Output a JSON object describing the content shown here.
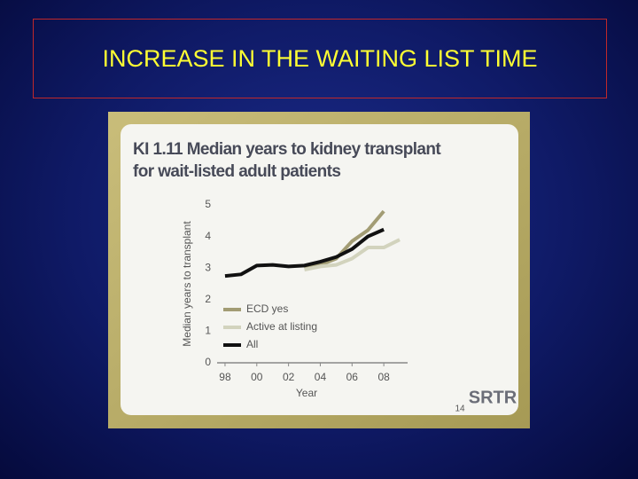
{
  "title": "INCREASE IN THE WAITING LIST TIME",
  "page_number": "14",
  "logo": "SRTR",
  "chart_data": {
    "type": "line",
    "title": "KI 1.11 Median years to kidney transplant for wait-listed adult patients",
    "x_label": "Year",
    "y_label": "Median years to transplant",
    "x": [
      1998,
      1999,
      2000,
      2001,
      2002,
      2003,
      2004,
      2005,
      2006,
      2007,
      2008,
      2009
    ],
    "series": [
      {
        "name": "ECD yes",
        "color": "#a29c74",
        "values": [
          null,
          null,
          null,
          null,
          null,
          3.0,
          3.1,
          3.3,
          3.85,
          4.2,
          4.8,
          null
        ]
      },
      {
        "name": "Active at listing",
        "color": "#d2d3bd",
        "values": [
          null,
          null,
          null,
          null,
          null,
          2.95,
          3.05,
          3.1,
          3.3,
          3.65,
          3.65,
          3.9
        ]
      },
      {
        "name": "All",
        "color": "#111111",
        "values": [
          2.75,
          2.8,
          3.08,
          3.1,
          3.05,
          3.08,
          3.2,
          3.35,
          3.6,
          4.0,
          4.22,
          null
        ]
      }
    ],
    "xlim": [
      1997.5,
      2009.5
    ],
    "xticks": [
      {
        "value": 1998,
        "label": "98"
      },
      {
        "value": 2000,
        "label": "00"
      },
      {
        "value": 2002,
        "label": "02"
      },
      {
        "value": 2004,
        "label": "04"
      },
      {
        "value": 2006,
        "label": "06"
      },
      {
        "value": 2008,
        "label": "08"
      }
    ],
    "ylim": [
      0,
      5
    ],
    "yticks": [
      0,
      1,
      2,
      3,
      4,
      5
    ],
    "grid": false,
    "legend": "lower-left"
  }
}
